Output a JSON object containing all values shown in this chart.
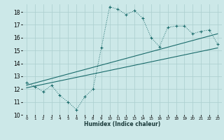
{
  "title": "",
  "xlabel": "Humidex (Indice chaleur)",
  "xlim": [
    -0.5,
    23.5
  ],
  "ylim": [
    10,
    18.6
  ],
  "yticks": [
    10,
    11,
    12,
    13,
    14,
    15,
    16,
    17,
    18
  ],
  "xticks": [
    0,
    1,
    2,
    3,
    4,
    5,
    6,
    7,
    8,
    9,
    10,
    11,
    12,
    13,
    14,
    15,
    16,
    17,
    18,
    19,
    20,
    21,
    22,
    23
  ],
  "bg_color": "#cce8e8",
  "line_color": "#1a6b6b",
  "grid_color": "#aacece",
  "curve1_x": [
    0,
    1,
    2,
    3,
    4,
    5,
    6,
    7,
    8,
    9,
    10,
    11,
    12,
    13,
    14,
    15,
    16,
    17,
    18,
    19,
    20,
    21,
    22,
    23
  ],
  "curve1_y": [
    12.5,
    12.2,
    11.8,
    12.3,
    11.5,
    11.0,
    10.4,
    11.4,
    12.0,
    15.2,
    18.4,
    18.2,
    17.8,
    18.1,
    17.5,
    16.0,
    15.3,
    16.8,
    16.9,
    16.9,
    16.3,
    16.5,
    16.6,
    15.5
  ],
  "curve2_x": [
    0,
    23
  ],
  "curve2_y": [
    12.3,
    16.3
  ],
  "curve3_x": [
    0,
    23
  ],
  "curve3_y": [
    12.1,
    15.2
  ]
}
